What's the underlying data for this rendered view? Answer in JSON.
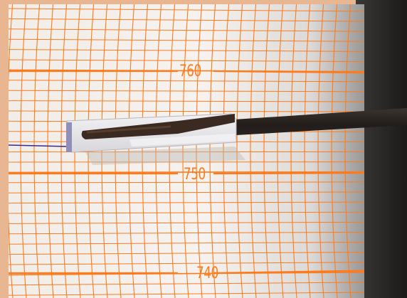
{
  "chart_data": {
    "type": "line",
    "title": "",
    "xlabel": "",
    "ylabel": "",
    "y_tick_labels": [
      "760",
      "750",
      "740"
    ],
    "grid": true
  },
  "colors": {
    "grid_orange": "#ff7a1a",
    "paper": "#f4f1ee",
    "pen_trace": "#3a2a8a",
    "arm_dark": "#2a2420",
    "clip_white": "#e9e8ea",
    "background_frame": "#e8b690"
  }
}
